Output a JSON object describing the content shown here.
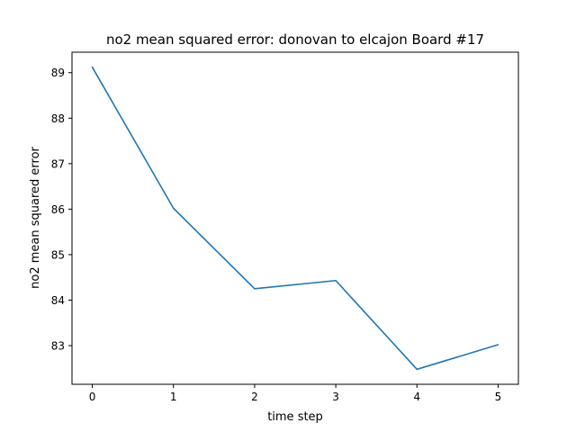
{
  "chart_data": {
    "type": "line",
    "title": "no2 mean squared error: donovan to elcajon Board #17",
    "xlabel": "time step",
    "ylabel": "no2 mean squared error",
    "x": [
      0,
      1,
      2,
      3,
      4,
      5
    ],
    "series": [
      {
        "values": [
          89.12,
          86.02,
          84.25,
          84.43,
          82.48,
          83.02
        ],
        "color": "#1f77b4"
      }
    ],
    "xlim": [
      -0.25,
      5.25
    ],
    "ylim": [
      82.15,
      89.45
    ],
    "xticks": [
      0,
      1,
      2,
      3,
      4,
      5
    ],
    "yticks": [
      83,
      84,
      85,
      86,
      87,
      88,
      89
    ],
    "grid": false,
    "legend": "none"
  }
}
